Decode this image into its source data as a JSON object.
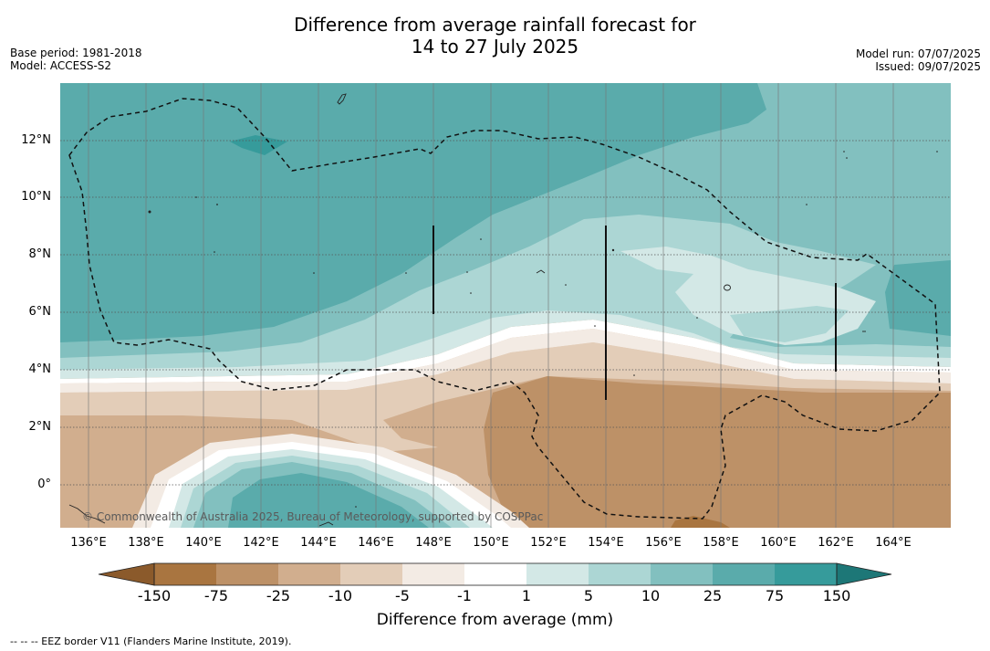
{
  "title": {
    "line1": "Difference from average rainfall forecast for",
    "line2": "14 to 27 July 2025"
  },
  "meta": {
    "base_period": "Base period: 1981-2018",
    "model": "Model: ACCESS-S2",
    "model_run": "Model run: 07/07/2025",
    "issued": "Issued: 09/07/2025"
  },
  "map": {
    "copyright": "© Commonwealth of Australia 2025, Bureau of Meteorology, supported by COSPPac",
    "lat_labels": [
      "12°N",
      "10°N",
      "8°N",
      "6°N",
      "4°N",
      "2°N",
      "0°"
    ],
    "lon_labels": [
      "136°E",
      "138°E",
      "140°E",
      "142°E",
      "144°E",
      "146°E",
      "148°E",
      "150°E",
      "152°E",
      "154°E",
      "156°E",
      "158°E",
      "160°E",
      "162°E",
      "164°E"
    ],
    "colors": {
      "dry_150": "#a97540",
      "dry_75": "#bd9167",
      "dry_25": "#d1ae8e",
      "dry_10": "#e3cdb8",
      "dry_5": "#f3ebe4",
      "neutral": "#ffffff",
      "wet_5": "#d3e8e6",
      "wet_10": "#acd6d4",
      "wet_25": "#82c0bf",
      "wet_75": "#5aabab",
      "wet_150": "#369b9b"
    }
  },
  "colorbar": {
    "title": "Difference from average (mm)",
    "labels": [
      "-150",
      "-75",
      "-25",
      "-10",
      "-5",
      "-1",
      "1",
      "5",
      "10",
      "25",
      "75",
      "150"
    ],
    "colors": [
      "#a97540",
      "#bd9167",
      "#d1ae8e",
      "#e3cdb8",
      "#f3ebe4",
      "#ffffff",
      "#d3e8e6",
      "#acd6d4",
      "#82c0bf",
      "#5aabab",
      "#369b9b"
    ],
    "low_extend": "#8b5a2b",
    "high_extend": "#1d7777"
  },
  "footer": {
    "legend": "--  --  -- EEZ border V11 (Flanders Marine Institute, 2019)."
  }
}
